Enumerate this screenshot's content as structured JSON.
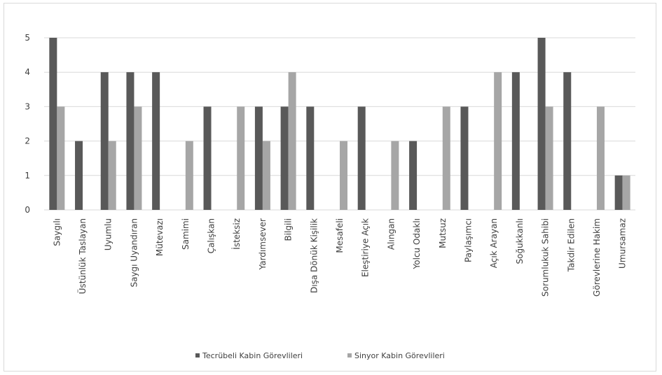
{
  "chart_data": {
    "type": "bar",
    "title": "",
    "xlabel": "",
    "ylabel": "",
    "ylim": [
      0,
      5
    ],
    "yticks": [
      "0",
      "1",
      "2",
      "3",
      "4",
      "5"
    ],
    "grid": true,
    "legend_position": "bottom",
    "categories": [
      "Saygılı",
      "Üstünlük Taslayan",
      "Uyumlu",
      "Saygı Uyandıran",
      "Mütevazı",
      "Samimi",
      "Çalışkan",
      "İsteksiz",
      "Yardımsever",
      "Bilgili",
      "Dışa Dönük Kişilik",
      "Mesafeli",
      "Eleştiriye Açık",
      "Alıngan",
      "Yolcu Odaklı",
      "Mutsuz",
      "Paylaşımcı",
      "Açık Arayan",
      "Soğukkanlı",
      "Sorumlukuk Sahibi",
      "Takdir Edilen",
      "Görevlerine Hakim",
      "Umursamaz"
    ],
    "series": [
      {
        "name": "Tecrübeli Kabin Görevlileri",
        "color": "#595959",
        "values": [
          5,
          2,
          4,
          4,
          4,
          0,
          3,
          0,
          3,
          3,
          3,
          0,
          3,
          0,
          2,
          0,
          3,
          0,
          4,
          5,
          4,
          0,
          1
        ]
      },
      {
        "name": "Sinyor Kabin Görevlileri",
        "color": "#a6a6a6",
        "values": [
          3,
          0,
          2,
          3,
          0,
          2,
          0,
          3,
          2,
          4,
          0,
          2,
          0,
          2,
          0,
          3,
          0,
          4,
          0,
          3,
          0,
          3,
          1
        ]
      }
    ]
  }
}
